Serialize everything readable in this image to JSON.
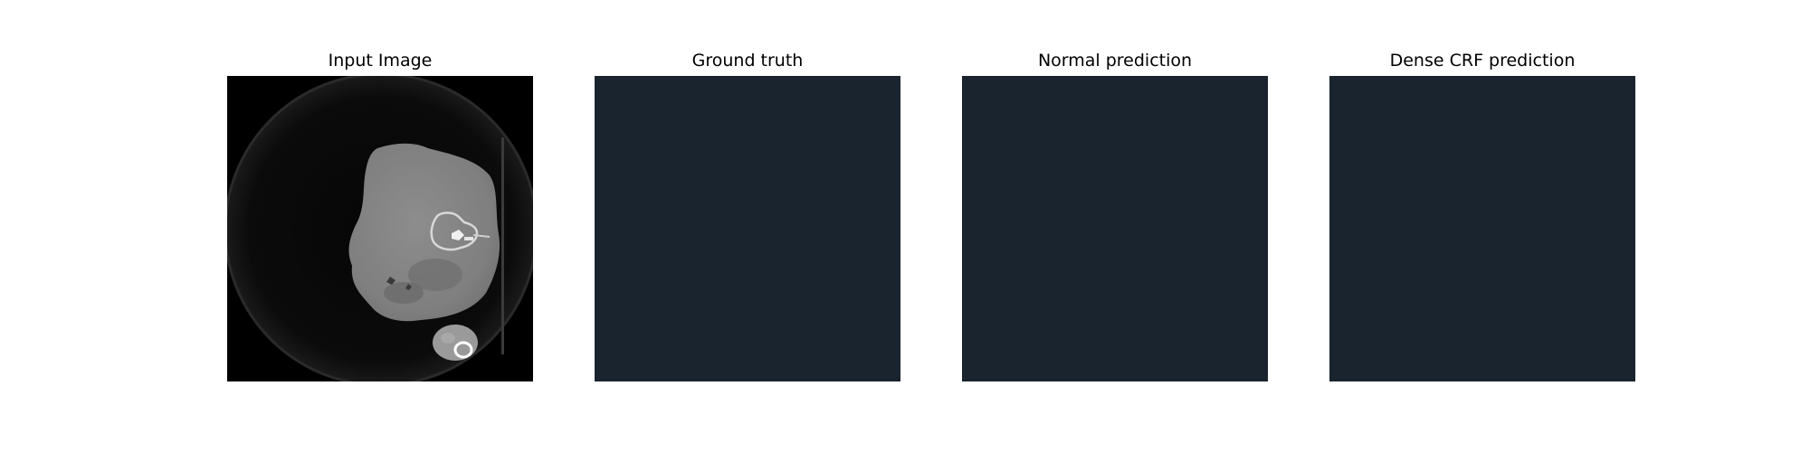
{
  "figure": {
    "panels": [
      {
        "title": "Input Image",
        "content": "ct-scan"
      },
      {
        "title": "Ground truth",
        "content": "empty-mask",
        "fill_color": "#19242F"
      },
      {
        "title": "Normal prediction",
        "content": "empty-mask",
        "fill_color": "#19242F"
      },
      {
        "title": "Dense CRF prediction",
        "content": "empty-mask",
        "fill_color": "#19242F"
      }
    ]
  }
}
